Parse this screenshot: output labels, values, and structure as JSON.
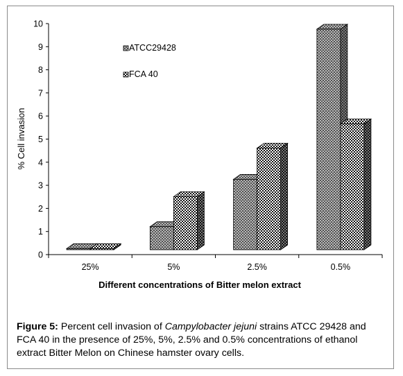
{
  "chart_data": {
    "type": "bar",
    "style": "3d-clustered",
    "categories": [
      "25%",
      "5%",
      "2.5%",
      "0.5%"
    ],
    "series": [
      {
        "name": "ATCC29428",
        "values": [
          0.05,
          1.0,
          3.05,
          9.55
        ],
        "pattern": "diamond-grid"
      },
      {
        "name": "FCA 40",
        "values": [
          0.05,
          2.3,
          4.4,
          5.45
        ],
        "pattern": "checker"
      }
    ],
    "ylabel": "% Cell invasion",
    "xlabel": "Different concentrations of Bitter melon extract",
    "ylim": [
      0,
      10
    ],
    "yticks": [
      "0",
      "1",
      "2",
      "3",
      "4",
      "5",
      "6",
      "7",
      "8",
      "9",
      "10"
    ],
    "grid": false,
    "legend": "top-left, inside plot"
  },
  "caption": {
    "label": "Figure 5:",
    "text_before": " Percent cell invasion of ",
    "species": "Campylobacter jejuni",
    "text_after": " strains ATCC 29428 and FCA 40 in the presence of 25%, 5%, 2.5% and 0.5% concentrations of ethanol extract Bitter Melon on Chinese hamster ovary cells."
  }
}
